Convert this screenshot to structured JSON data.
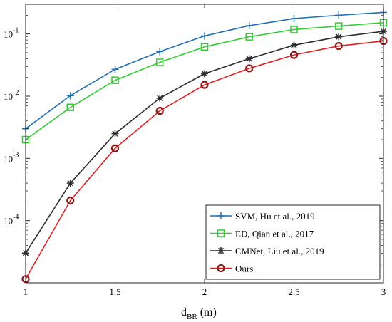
{
  "chart_data": {
    "type": "line",
    "title": "",
    "xlabel": {
      "main": "d",
      "sub": "BR",
      "unit": " (m)"
    },
    "ylabel": "",
    "xlim": [
      1,
      3
    ],
    "ylim": [
      1e-05,
      0.3
    ],
    "yscale": "log",
    "grid": false,
    "legend_position": "bottom-right",
    "x": [
      1,
      1.25,
      1.5,
      1.75,
      2,
      2.25,
      2.5,
      2.75,
      3
    ],
    "x_ticks": [
      {
        "value": 1,
        "label": "1"
      },
      {
        "value": 1.5,
        "label": "1.5"
      },
      {
        "value": 2,
        "label": "2"
      },
      {
        "value": 2.5,
        "label": "2.5"
      },
      {
        "value": 3,
        "label": "3"
      }
    ],
    "y_ticks": [
      {
        "value": 0.1,
        "base": "10",
        "exp": "-1"
      },
      {
        "value": 0.01,
        "base": "10",
        "exp": "-2"
      },
      {
        "value": 0.001,
        "base": "10",
        "exp": "-3"
      },
      {
        "value": 0.0001,
        "base": "10",
        "exp": "-4"
      }
    ],
    "series": [
      {
        "name": "SVM, Hu et al., 2019",
        "color": "#1f6fb2",
        "marker": "plus",
        "values": [
          0.003,
          0.0102,
          0.027,
          0.052,
          0.093,
          0.136,
          0.177,
          0.2,
          0.222
        ]
      },
      {
        "name": "ED, Qian et al., 2017",
        "color": "#33cc33",
        "marker": "square",
        "values": [
          0.002,
          0.0066,
          0.018,
          0.035,
          0.062,
          0.09,
          0.118,
          0.134,
          0.152
        ]
      },
      {
        "name": "CMNet, Liu et al., 2019",
        "color": "#2b2b2b",
        "marker": "asterisk",
        "values": [
          3e-05,
          0.0004,
          0.0025,
          0.0093,
          0.023,
          0.04,
          0.066,
          0.09,
          0.11
        ]
      },
      {
        "name": "Ours",
        "color": "#e02020",
        "marker": "circle",
        "marker_edge": "#8b1a1a",
        "values": [
          1.15e-05,
          0.00021,
          0.00145,
          0.0058,
          0.0152,
          0.028,
          0.046,
          0.064,
          0.077
        ]
      }
    ]
  }
}
